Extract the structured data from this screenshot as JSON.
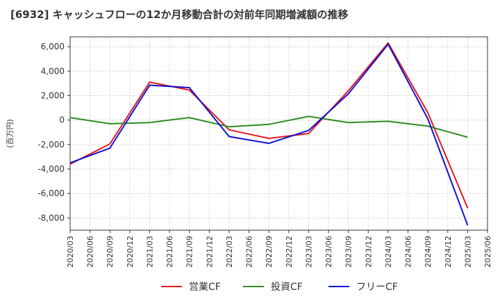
{
  "title": "[6932]  キャッシュフローの12か月移動合計の対前年同期増減額の推移",
  "colors": {
    "operating": "#e31a1c",
    "investing": "#2e8b22",
    "free": "#1010d8",
    "grid": "#bbbbbb",
    "plot_border": "#333333"
  },
  "chart_data": {
    "type": "line",
    "ylabel": "(百万円)",
    "ylim": [
      -9000,
      6800
    ],
    "yticks": [
      6000,
      4000,
      2000,
      0,
      -2000,
      -4000,
      -6000,
      -8000
    ],
    "ytick_labels": [
      "6,000",
      "4,000",
      "2,000",
      "0",
      "-2,000",
      "-4,000",
      "-6,000",
      "-8,000"
    ],
    "x_labels": [
      "2020/03",
      "2020/06",
      "2020/09",
      "2020/12",
      "2021/03",
      "2021/06",
      "2021/09",
      "2021/12",
      "2022/03",
      "2022/06",
      "2022/09",
      "2022/12",
      "2023/03",
      "2023/06",
      "2023/09",
      "2023/12",
      "2024/03",
      "2024/06",
      "2024/09",
      "2024/12",
      "2025/03",
      "2025/06"
    ],
    "grid": true,
    "legend_position": "bottom",
    "series": [
      {
        "name": "営業CF",
        "color_key": "operating",
        "values": [
          -3600,
          null,
          -1950,
          null,
          3100,
          null,
          2450,
          null,
          -800,
          null,
          -1500,
          null,
          -1100,
          null,
          2400,
          null,
          6300,
          null,
          600,
          null,
          -7200
        ]
      },
      {
        "name": "投資CF",
        "color_key": "investing",
        "values": [
          200,
          null,
          -300,
          null,
          -200,
          null,
          200,
          null,
          -550,
          null,
          -350,
          null,
          300,
          null,
          -200,
          null,
          -100,
          null,
          -500,
          null,
          -1400
        ]
      },
      {
        "name": "フリーCF",
        "color_key": "free",
        "values": [
          -3500,
          null,
          -2300,
          null,
          2850,
          null,
          2650,
          null,
          -1350,
          null,
          -1900,
          null,
          -850,
          null,
          2150,
          null,
          6200,
          null,
          100,
          null,
          -8600
        ]
      }
    ]
  }
}
